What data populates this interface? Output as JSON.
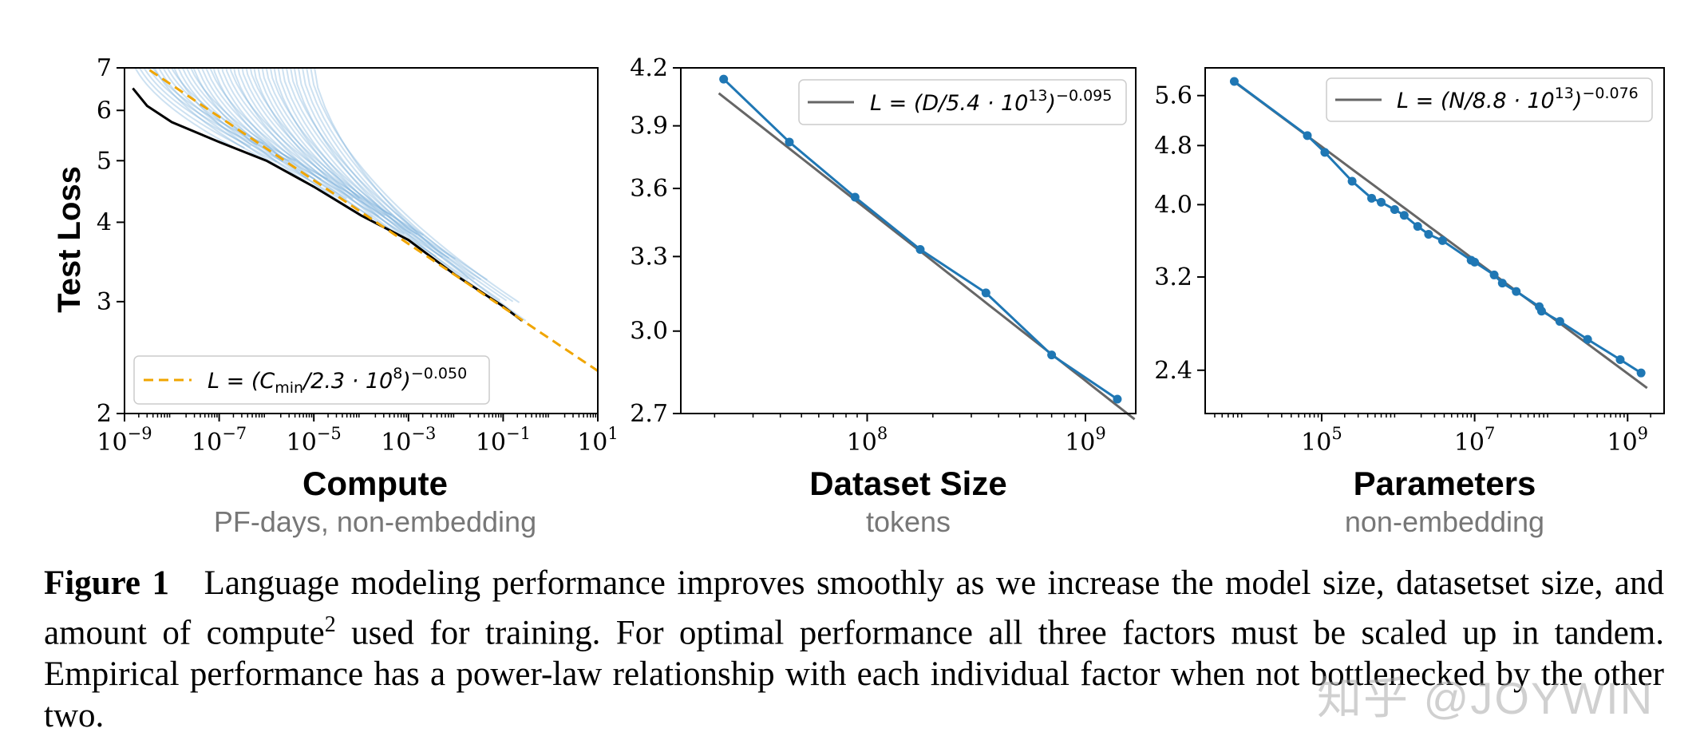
{
  "chart_data": [
    {
      "type": "line",
      "title": "Compute",
      "subtitle": "PF-days, non-embedding",
      "ylabel": "Test Loss",
      "xscale": "log",
      "yscale": "log",
      "xlim": [
        1e-09,
        10
      ],
      "ylim": [
        2,
        7
      ],
      "xticks": [
        "10^-9",
        "10^-7",
        "10^-5",
        "10^-3",
        "10^-1",
        "10^1"
      ],
      "yticks": [
        "2",
        "3",
        "4",
        "5",
        "6",
        "7"
      ],
      "fit": {
        "label": "L = (Cmin/2.3 · 10^8)^-0.050",
        "base": 230000000.0,
        "exponent": -0.05,
        "color": "#f0a500"
      },
      "frontier_color": "#000000",
      "curve_color": "#6fa8d6",
      "frontier": [
        [
          1.5e-09,
          6.5
        ],
        [
          3e-09,
          6.1
        ],
        [
          1e-08,
          5.75
        ],
        [
          1e-07,
          5.35
        ],
        [
          1e-06,
          5.0
        ],
        [
          1e-05,
          4.55
        ],
        [
          0.0001,
          4.1
        ],
        [
          0.001,
          3.75
        ],
        [
          0.01,
          3.3
        ],
        [
          0.1,
          2.95
        ],
        [
          0.25,
          2.8
        ]
      ],
      "legend": "lower-left"
    },
    {
      "type": "line",
      "title": "Dataset Size",
      "subtitle": "tokens",
      "xscale": "log",
      "yscale": "log",
      "xlim": [
        14000000.0,
        1700000000.0
      ],
      "ylim": [
        2.7,
        4.2
      ],
      "xticks": [
        "10^8",
        "10^9"
      ],
      "yticks": [
        "2.7",
        "3.0",
        "3.3",
        "3.6",
        "3.9",
        "4.2"
      ],
      "fit": {
        "label": "L = (D/5.4 · 10^13)^-0.095",
        "base": 54000000000000.0,
        "exponent": -0.095,
        "color": "#666666"
      },
      "series": [
        {
          "color": "#1f77b4",
          "x": [
            22000000.0,
            44000000.0,
            88000000.0,
            175000000.0,
            350000000.0,
            700000000.0,
            1400000000.0
          ],
          "y": [
            4.14,
            3.82,
            3.56,
            3.33,
            3.15,
            2.91,
            2.75
          ]
        }
      ],
      "legend": "top-right"
    },
    {
      "type": "line",
      "title": "Parameters",
      "subtitle": "non-embedding",
      "xscale": "log",
      "yscale": "log",
      "xlim": [
        3000.0,
        3000000000.0
      ],
      "ylim": [
        2.1,
        6.1
      ],
      "xticks": [
        "10^5",
        "10^7",
        "10^9"
      ],
      "yticks": [
        "2.4",
        "3.2",
        "4.0",
        "4.8",
        "5.6"
      ],
      "fit": {
        "label": "L = (N/8.8 · 10^13)^-0.076",
        "base": 88000000000000.0,
        "exponent": -0.076,
        "color": "#666666"
      },
      "series": [
        {
          "color": "#1f77b4",
          "x": [
            7200.0,
            65000.0,
            110000.0,
            250000.0,
            450000.0,
            600000.0,
            900000.0,
            1200000.0,
            1800000.0,
            2500000.0,
            3800000.0,
            9000000.0,
            10000000.0,
            18000000.0,
            23000000.0,
            35000000.0,
            70000000.0,
            75000000.0,
            130000000.0,
            300000000.0,
            800000000.0,
            1500000000.0
          ],
          "y": [
            5.85,
            4.95,
            4.7,
            4.3,
            4.08,
            4.03,
            3.94,
            3.87,
            3.74,
            3.65,
            3.58,
            3.37,
            3.35,
            3.22,
            3.14,
            3.06,
            2.92,
            2.88,
            2.79,
            2.64,
            2.48,
            2.38
          ]
        }
      ],
      "legend": "top-right"
    }
  ],
  "caption": {
    "label": "Figure 1",
    "text1": "Language modeling performance improves smoothly as we increase the model size, datasetset size, and amount of compute",
    "footnote": "2",
    "text2": " used for training. For optimal performance all three factors must be scaled up in tandem. Empirical performance has a power-law relationship with each individual factor when not bottlenecked by the other two."
  },
  "watermark": "知乎 @JOYWIN"
}
